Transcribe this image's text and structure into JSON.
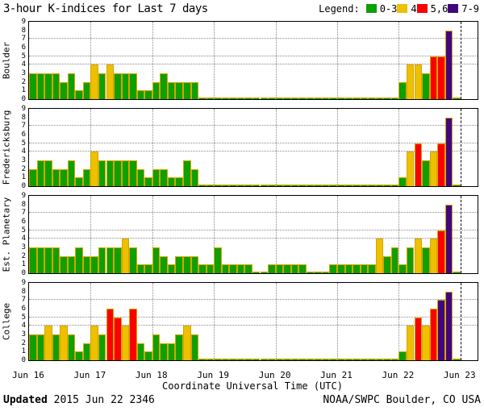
{
  "title": "3-hour K-indices for Last 7 days",
  "legend": {
    "label": "Legend:",
    "items": [
      {
        "label": "0-3",
        "color": "#0da000"
      },
      {
        "label": "4",
        "color": "#edc000"
      },
      {
        "label": "5,6",
        "color": "#fa0000"
      },
      {
        "label": "7-9",
        "color": "#41067e"
      }
    ]
  },
  "chart_data": {
    "type": "bar",
    "title": "3-hour K-indices for Last 7 days",
    "xlabel": "Coordinate Universal Time (UTC)",
    "ylabel": "",
    "ylim": [
      0,
      9
    ],
    "y_ticks": [
      0,
      1,
      2,
      3,
      4,
      5,
      6,
      7,
      8,
      9
    ],
    "h_gridlines_at": [
      4,
      5,
      7
    ],
    "x_tick_labels": [
      "Jun 16",
      "Jun 17",
      "Jun 18",
      "Jun 19",
      "Jun 20",
      "Jun 21",
      "Jun 22",
      "Jun 23"
    ],
    "bars_per_day": 8,
    "bar_interval_hours": 3,
    "color_rules": [
      {
        "k_range": [
          0,
          3
        ],
        "color": "#0da000"
      },
      {
        "k_range": [
          4,
          4
        ],
        "color": "#edc000"
      },
      {
        "k_range": [
          5,
          6
        ],
        "color": "#fa0000"
      },
      {
        "k_range": [
          7,
          9
        ],
        "color": "#41067e"
      }
    ],
    "grid": true,
    "legend_position": "top-right",
    "stations": [
      {
        "name": "Boulder",
        "k_values": [
          3,
          3,
          3,
          3,
          2,
          3,
          1,
          2,
          4,
          3,
          4,
          3,
          3,
          3,
          1,
          1,
          2,
          3,
          2,
          2,
          2,
          2,
          0,
          0,
          0,
          0,
          0,
          0,
          0,
          0,
          0,
          0,
          0,
          0,
          0,
          0,
          0,
          0,
          0,
          0,
          0,
          0,
          0,
          0,
          0,
          0,
          0,
          0,
          2,
          4,
          4,
          3,
          5,
          5,
          8,
          0
        ]
      },
      {
        "name": "Fredericksburg",
        "k_values": [
          2,
          3,
          3,
          2,
          2,
          3,
          1,
          2,
          4,
          3,
          3,
          3,
          3,
          3,
          2,
          1,
          2,
          2,
          1,
          1,
          3,
          2,
          0,
          0,
          0,
          0,
          0,
          0,
          0,
          0,
          0,
          0,
          0,
          0,
          0,
          0,
          0,
          0,
          0,
          0,
          0,
          0,
          0,
          0,
          0,
          0,
          0,
          0,
          1,
          4,
          5,
          3,
          4,
          5,
          8,
          0
        ]
      },
      {
        "name": "Est. Planetary",
        "k_values": [
          3,
          3,
          3,
          3,
          2,
          2,
          3,
          2,
          2,
          3,
          3,
          3,
          4,
          3,
          1,
          1,
          3,
          2,
          1,
          2,
          2,
          2,
          1,
          1,
          3,
          1,
          1,
          1,
          1,
          0,
          0,
          1,
          1,
          1,
          1,
          1,
          0,
          0,
          0,
          1,
          1,
          1,
          1,
          1,
          1,
          4,
          2,
          3,
          1,
          3,
          4,
          3,
          4,
          5,
          8,
          0
        ]
      },
      {
        "name": "College",
        "k_values": [
          3,
          3,
          4,
          3,
          4,
          3,
          1,
          2,
          4,
          3,
          6,
          5,
          4,
          6,
          2,
          1,
          3,
          2,
          2,
          3,
          4,
          3,
          0,
          0,
          0,
          0,
          0,
          0,
          0,
          0,
          0,
          0,
          0,
          0,
          0,
          0,
          0,
          0,
          0,
          0,
          0,
          0,
          0,
          0,
          0,
          0,
          0,
          0,
          1,
          4,
          5,
          4,
          6,
          7,
          8,
          0
        ]
      }
    ]
  },
  "footer": {
    "updated_label": "Updated",
    "updated_value": " 2015 Jun 22 2346",
    "credit": "NOAA/SWPC Boulder, CO USA"
  }
}
